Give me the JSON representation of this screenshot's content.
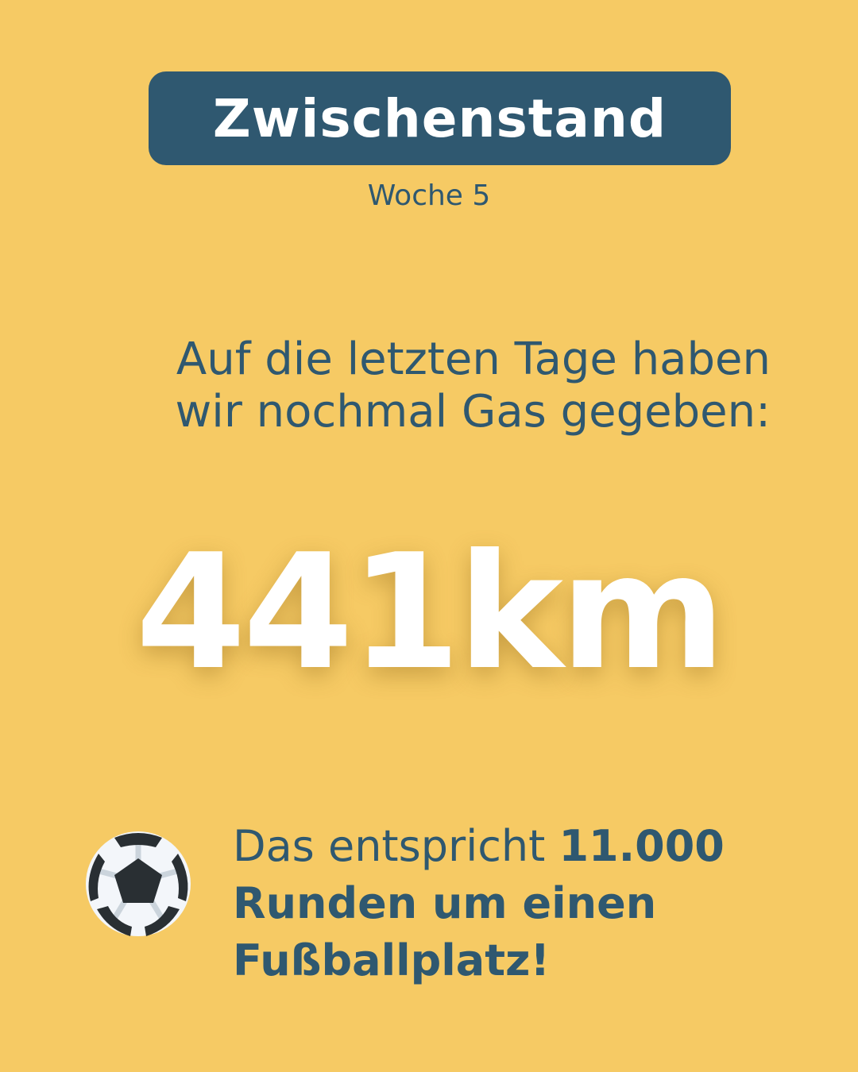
{
  "header": {
    "title": "Zwischenstand",
    "subtitle": "Woche 5"
  },
  "lead": {
    "text": "Auf die letzten Tage haben wir nochmal Gas gegeben:"
  },
  "stat": {
    "value": "441km"
  },
  "fact": {
    "prefix": "Das entspricht ",
    "highlight": "11.000 Runden um einen Fußballplatz!",
    "icon": "soccer-ball-icon"
  },
  "colors": {
    "background": "#F6CA64",
    "accent": "#2F5870",
    "stat": "#FFFFFF"
  }
}
